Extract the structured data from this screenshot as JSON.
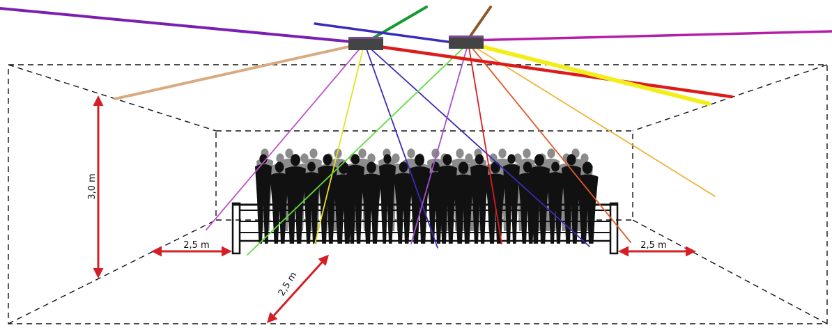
{
  "dimensions": {
    "height_label": "3,0 m",
    "left_gap_label": "2,5 m",
    "right_gap_label": "2,5 m",
    "front_gap_label": "2,5 m"
  },
  "colors": {
    "dimension_arrow": "#d41f26",
    "room_outline": "#111111",
    "projector_body": "#444444",
    "crowd_front": "#111111",
    "crowd_back": "#8c8c8c",
    "beam_violet": "#7a1fb0",
    "beam_green": "#159a30",
    "beam_brown": "#8a5a2b",
    "beam_blue": "#3a2bb8",
    "beam_magenta": "#b51fa8",
    "beam_red": "#dd1b1b",
    "beam_yellow": "#f2ee1a",
    "beam_tan": "#d9aa80",
    "beam_orange": "#e08a2a",
    "beam_light_green": "#5fdc3c"
  },
  "elements": {
    "projectors": [
      "laser-projector",
      "laser-projector"
    ],
    "audience": "crowd-silhouette",
    "stage_barrier": "barrier-fence"
  }
}
